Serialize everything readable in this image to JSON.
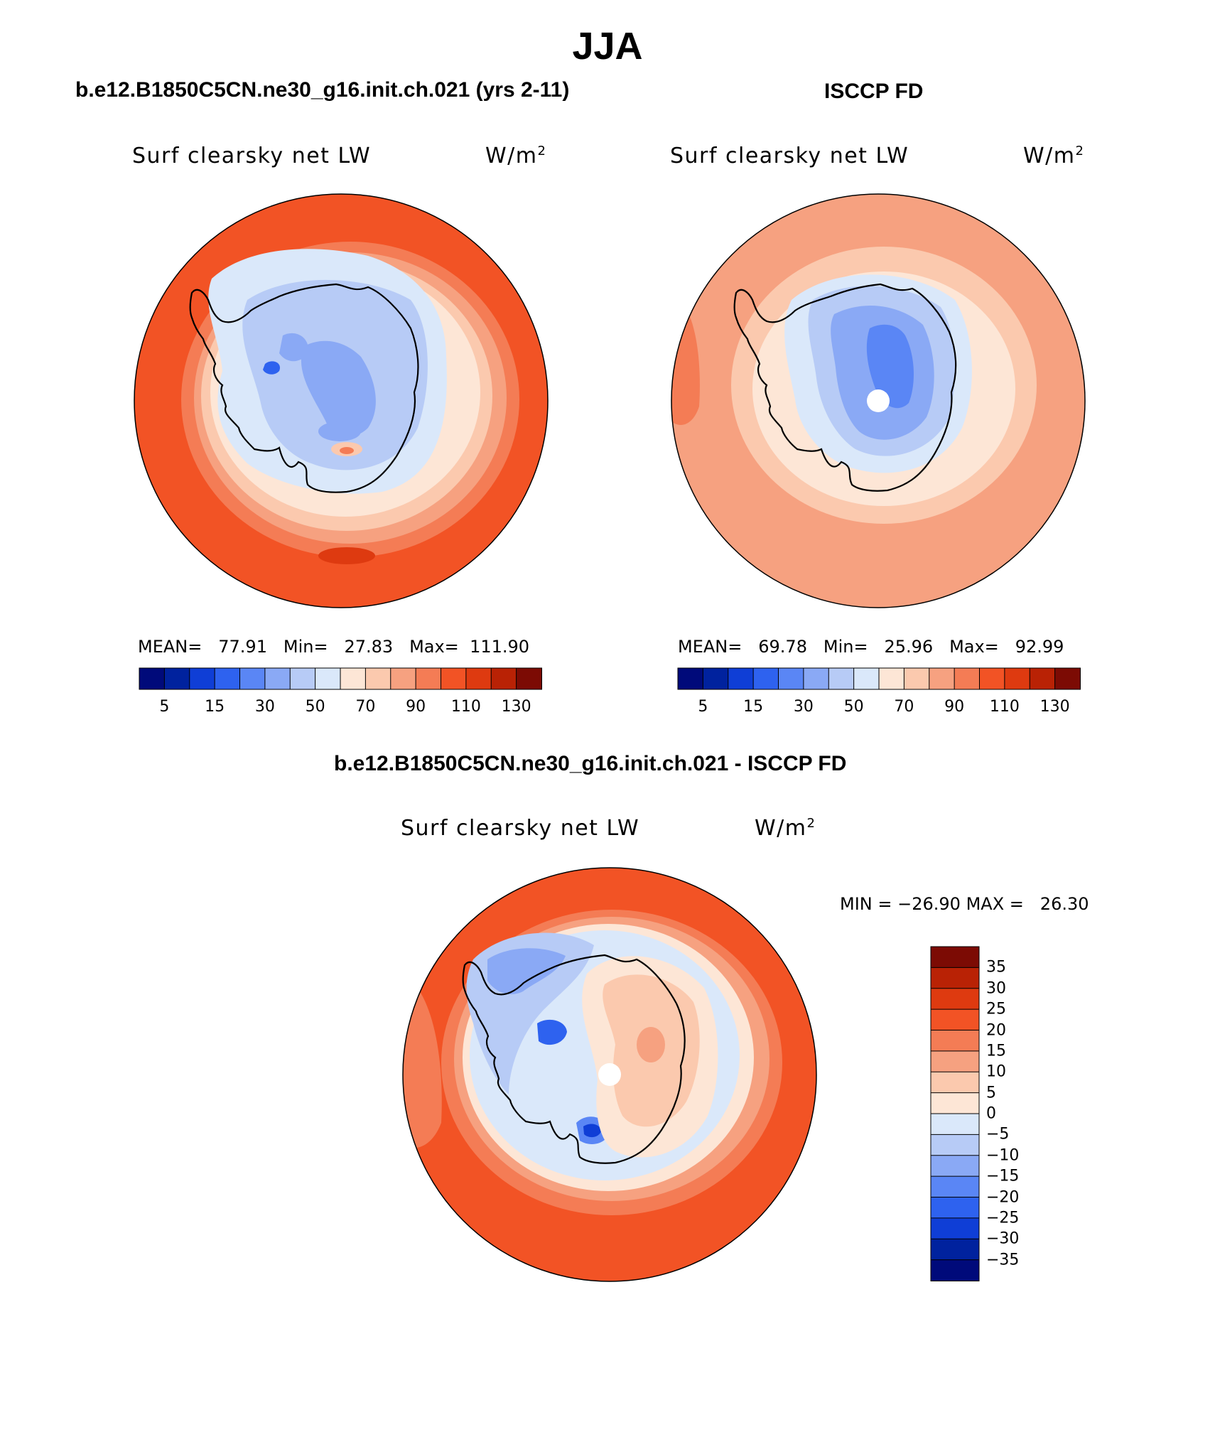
{
  "figure": {
    "season": "JJA"
  },
  "panels": {
    "model": {
      "case_title": "b.e12.B1850C5CN.ne30_g16.init.ch.021 (yrs 2-11)",
      "variable": "Surf clearsky net LW",
      "units_base": "W/m",
      "units_exp": "2",
      "stats": {
        "mean_label": "MEAN=",
        "mean": "77.91",
        "min_label": "Min=",
        "min": "27.83",
        "max_label": "Max=",
        "max": "111.90"
      }
    },
    "obs": {
      "case_title": "ISCCP FD",
      "variable": "Surf clearsky net LW",
      "units_base": "W/m",
      "units_exp": "2",
      "stats": {
        "mean_label": "MEAN=",
        "mean": "69.78",
        "min_label": "Min=",
        "min": "25.96",
        "max_label": "Max=",
        "max": "92.99"
      }
    },
    "diff": {
      "case_title": "b.e12.B1850C5CN.ne30_g16.init.ch.021 - ISCCP FD",
      "variable": "Surf clearsky net LW",
      "units_base": "W/m",
      "units_exp": "2",
      "stats": {
        "min_label": "MIN =",
        "min": "−26.90",
        "max_label": "MAX =",
        "max": "26.30"
      }
    }
  },
  "colorbars": {
    "absolute": {
      "colors": [
        "#000a7a",
        "#00229e",
        "#0f3ed6",
        "#2e62ef",
        "#5a86f5",
        "#8aa9f5",
        "#b7cbf6",
        "#dae8fa",
        "#fde6d6",
        "#fbc9ae",
        "#f6a180",
        "#f47c55",
        "#f25325",
        "#de3a10",
        "#b92205",
        "#7c0b04"
      ],
      "labels": [
        "5",
        "15",
        "30",
        "50",
        "70",
        "90",
        "110",
        "130"
      ],
      "label_boundaries": [
        1,
        3,
        5,
        7,
        9,
        11,
        13,
        15
      ]
    },
    "difference": {
      "colors": [
        "#000a7a",
        "#00229e",
        "#0f3ed6",
        "#2e62ef",
        "#5a86f5",
        "#8aa9f5",
        "#b7cbf6",
        "#dae8fa",
        "#fde6d6",
        "#fbc9ae",
        "#f6a180",
        "#f47c55",
        "#f25325",
        "#de3a10",
        "#b92205",
        "#7c0b04"
      ],
      "labels": [
        "35",
        "30",
        "25",
        "20",
        "15",
        "10",
        "5",
        "0",
        "−5",
        "−10",
        "−15",
        "−20",
        "−25",
        "−30",
        "−35"
      ]
    }
  },
  "map_colors": {
    "ocean_warm": "#f25325",
    "ocean_light": "#f6a180",
    "coast_band": "#fbc9ae",
    "sea_ice": "#fde6d6",
    "ice_light": "#dae8fa",
    "ice_mid": "#b7cbf6",
    "ice_deep": "#8aa9f5",
    "ice_core": "#5a86f5",
    "coast_line": "#000000"
  }
}
